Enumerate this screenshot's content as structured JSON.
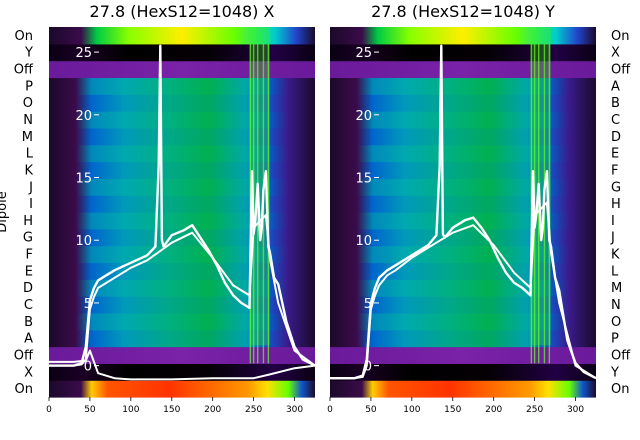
{
  "chart_data": [
    {
      "type": "heatmap",
      "title": "27.8 (HexS12=1048) X",
      "ylabel": "Dipole",
      "row_labels": [
        "On",
        "X",
        "Off",
        "A",
        "B",
        "C",
        "D",
        "E",
        "F",
        "G",
        "H",
        "I",
        "J",
        "K",
        "L",
        "M",
        "N",
        "O",
        "P",
        "Off",
        "Y",
        "On"
      ],
      "x_ticks": [
        0,
        50,
        100,
        150,
        200,
        250,
        300
      ],
      "xlim": [
        0,
        325
      ],
      "overlay_y_ticks": [
        0,
        5,
        10,
        15,
        20,
        25
      ],
      "overlay_ylim": [
        -2.5,
        27
      ],
      "overlay_series": [
        {
          "x": [
            0,
            30,
            40,
            45,
            50,
            55,
            60,
            70,
            80,
            100,
            120,
            130,
            134,
            136,
            138,
            140,
            150,
            165,
            175,
            185,
            195,
            205,
            215,
            225,
            235,
            245,
            248,
            250,
            252,
            255,
            258,
            260,
            262,
            265,
            268,
            270,
            275,
            280,
            290,
            300,
            310,
            325
          ],
          "values": [
            0,
            0,
            0.2,
            1.5,
            5.2,
            6.2,
            6.8,
            7.2,
            7.6,
            8.2,
            8.8,
            9.5,
            16,
            25.5,
            10,
            9.5,
            10.4,
            10.8,
            11.2,
            10.2,
            9.2,
            8.0,
            6.6,
            5.6,
            5.0,
            4.6,
            15.5,
            10.5,
            11.5,
            14.5,
            10,
            11,
            14,
            15.5,
            9.5,
            9,
            7,
            6.5,
            3.5,
            1.5,
            0.5,
            0
          ]
        },
        {
          "x": [
            0,
            30,
            40,
            45,
            50,
            55,
            60,
            70,
            80,
            100,
            120,
            150,
            175,
            200,
            225,
            245,
            250,
            265,
            270,
            280,
            300,
            325
          ],
          "values": [
            0,
            0,
            0.1,
            0.5,
            4.5,
            5.5,
            6.2,
            6.6,
            7.0,
            7.8,
            8.4,
            9.8,
            10.6,
            8.6,
            6.4,
            5.6,
            11,
            12,
            8.5,
            5,
            1.2,
            0
          ]
        },
        {
          "x": [
            0,
            30,
            45,
            50,
            60,
            80,
            100,
            150,
            200,
            250,
            270,
            300,
            325
          ],
          "values": [
            0.3,
            0.3,
            0.4,
            1.2,
            -0.6,
            -1.0,
            -1.1,
            -1.1,
            -1.0,
            -1.0,
            -0.7,
            -0.2,
            0
          ]
        }
      ]
    },
    {
      "type": "heatmap",
      "title": "27.8 (HexS12=1048) Y",
      "row_labels": [
        "On",
        "Y",
        "Off",
        "P",
        "O",
        "N",
        "M",
        "L",
        "K",
        "J",
        "I",
        "H",
        "G",
        "F",
        "E",
        "D",
        "C",
        "B",
        "A",
        "Off",
        "X",
        "On"
      ],
      "x_ticks": [
        0,
        50,
        100,
        150,
        200,
        250,
        300
      ],
      "xlim": [
        0,
        325
      ],
      "overlay_y_ticks": [
        0,
        5,
        10,
        15,
        20,
        25
      ],
      "overlay_ylim": [
        -2.5,
        27
      ],
      "overlay_series": [
        {
          "x": [
            0,
            30,
            40,
            45,
            50,
            55,
            60,
            70,
            80,
            100,
            120,
            130,
            134,
            136,
            138,
            140,
            150,
            165,
            175,
            185,
            195,
            205,
            215,
            225,
            235,
            245,
            248,
            250,
            252,
            255,
            258,
            260,
            262,
            265,
            268,
            270,
            275,
            280,
            290,
            300,
            310,
            325
          ],
          "values": [
            -1,
            -1,
            -0.8,
            0.5,
            5.0,
            6.2,
            7.0,
            7.6,
            8.0,
            8.8,
            9.6,
            10.4,
            16,
            25.5,
            10.5,
            10.2,
            11.0,
            11.6,
            11.8,
            11.0,
            10.0,
            8.6,
            7.4,
            6.6,
            6.2,
            5.6,
            15.5,
            11,
            12,
            14.5,
            10,
            11,
            14,
            15.5,
            10,
            9.5,
            7,
            6.0,
            2.0,
            0.2,
            -0.5,
            -1
          ]
        },
        {
          "x": [
            0,
            30,
            40,
            45,
            50,
            55,
            60,
            70,
            80,
            100,
            120,
            150,
            175,
            200,
            225,
            245,
            250,
            265,
            270,
            280,
            300,
            325
          ],
          "values": [
            -1,
            -1,
            -0.9,
            0,
            4.5,
            5.6,
            6.4,
            7.2,
            7.6,
            8.6,
            9.4,
            10.6,
            11.2,
            9.6,
            7.4,
            6.2,
            12,
            13,
            9,
            5,
            0,
            -1
          ]
        }
      ]
    }
  ]
}
